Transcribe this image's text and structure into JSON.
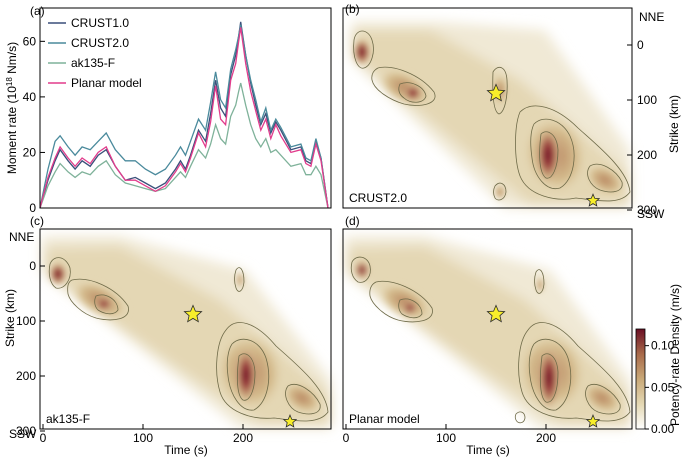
{
  "chart_data": [
    {
      "panel": "(a)",
      "type": "line",
      "xlabel": "",
      "ylabel": "Moment rate (10",
      "ylabel_sup": "18",
      "ylabel_unit": " Nm/s)",
      "xlim": [
        0,
        290
      ],
      "ylim": [
        0,
        72
      ],
      "yticks": [
        "0",
        "20",
        "40",
        "60"
      ],
      "x": [
        0,
        8,
        15,
        20,
        28,
        35,
        42,
        50,
        58,
        66,
        75,
        85,
        95,
        105,
        115,
        125,
        135,
        140,
        145,
        150,
        158,
        165,
        170,
        175,
        180,
        185,
        190,
        195,
        198,
        200,
        205,
        210,
        215,
        220,
        225,
        230,
        235,
        240,
        250,
        260,
        265,
        270,
        275,
        280,
        287
      ],
      "series": [
        {
          "name": "CRUST1.0",
          "color": "#3a4f7a",
          "values": [
            0,
            10,
            17,
            21,
            17,
            14,
            17,
            15,
            19,
            21,
            15,
            10,
            11,
            9,
            7,
            9,
            14,
            17,
            14,
            19,
            28,
            24,
            34,
            46,
            36,
            33,
            48,
            55,
            62,
            67,
            55,
            45,
            37,
            30,
            34,
            27,
            31,
            28,
            21,
            22,
            17,
            16,
            24,
            18,
            0
          ]
        },
        {
          "name": "CRUST2.0",
          "color": "#4a8a9c",
          "values": [
            0,
            14,
            24,
            26,
            22,
            19,
            22,
            21,
            24,
            27,
            21,
            17,
            17,
            14,
            12,
            14,
            19,
            22,
            19,
            24,
            32,
            28,
            38,
            49,
            39,
            36,
            50,
            57,
            62,
            66,
            55,
            46,
            39,
            31,
            36,
            28,
            32,
            29,
            22,
            23,
            18,
            17,
            25,
            18,
            0
          ]
        },
        {
          "name": "ak135-F",
          "color": "#7fb29a",
          "values": [
            0,
            8,
            13,
            16,
            13,
            11,
            13,
            12,
            15,
            17,
            12,
            9,
            8,
            7,
            6,
            7,
            11,
            13,
            11,
            15,
            21,
            18,
            23,
            30,
            25,
            23,
            33,
            37,
            42,
            45,
            37,
            30,
            25,
            22,
            25,
            20,
            21,
            19,
            15,
            16,
            12,
            12,
            15,
            12,
            0
          ]
        },
        {
          "name": "Planar model",
          "color": "#e23c8c",
          "values": [
            0,
            11,
            18,
            22,
            18,
            15,
            18,
            16,
            20,
            22,
            15,
            10,
            10,
            8,
            6,
            8,
            13,
            16,
            13,
            18,
            27,
            22,
            31,
            44,
            32,
            30,
            46,
            52,
            60,
            65,
            52,
            42,
            35,
            28,
            32,
            25,
            30,
            26,
            20,
            21,
            16,
            15,
            23,
            17,
            0
          ]
        }
      ]
    },
    {
      "panel": "(b)",
      "type": "heatmap",
      "model": "CRUST2.0",
      "ylabel": "Strike (km)",
      "yticks": [
        "0",
        "100",
        "200",
        "300"
      ],
      "top_label": "NNE",
      "bottom_label": "SSW",
      "stars": [
        {
          "time": 150,
          "strike": 88
        },
        {
          "time": 247,
          "strike": 283
        }
      ]
    },
    {
      "panel": "(c)",
      "type": "heatmap",
      "model": "ak135-F",
      "xlabel": "Time (s)",
      "ylabel": "Strike (km)",
      "xticks": [
        "0",
        "100",
        "200"
      ],
      "yticks": [
        "0",
        "100",
        "200",
        "300"
      ],
      "top_label": "NNE",
      "bottom_label": "SSW",
      "stars": [
        {
          "time": 150,
          "strike": 88
        },
        {
          "time": 247,
          "strike": 283
        }
      ]
    },
    {
      "panel": "(d)",
      "type": "heatmap",
      "model": "Planar model",
      "xlabel": "Time (s)",
      "xticks": [
        "0",
        "100",
        "200"
      ],
      "stars": [
        {
          "time": 150,
          "strike": 88
        },
        {
          "time": 247,
          "strike": 283
        }
      ]
    }
  ],
  "colorbar": {
    "label": "Potency-rate Density (m/s)",
    "ticks": [
      "0.00",
      "0.05",
      "0.10"
    ],
    "min": 0,
    "max": 0.12,
    "colors": [
      "#ffffff",
      "#e4d8b4",
      "#c9a978",
      "#a86a4a",
      "#6b0f24"
    ]
  }
}
